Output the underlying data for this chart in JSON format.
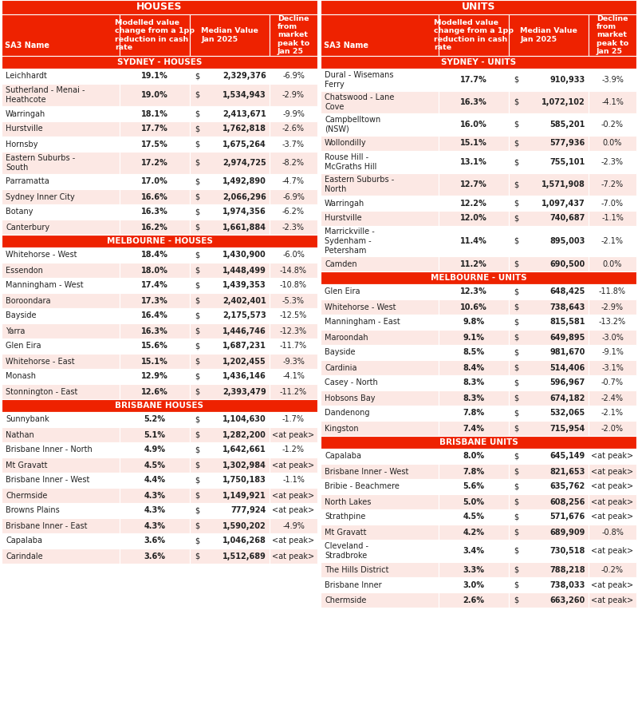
{
  "header_bg": "#ee2200",
  "header_text": "#ffffff",
  "row_even_bg": "#ffffff",
  "row_odd_bg": "#fce8e4",
  "dark_text": "#222222",
  "title_houses": "HOUSES",
  "title_units": "UNITS",
  "col_headers": [
    "SA3 Name",
    "Modelled value\nchange from a 1pp\nreduction in cash\nrate",
    "Median Value\nJan 2025",
    "Decline\nfrom\nmarket\npeak to\nJan 25"
  ],
  "houses_sydney_header": "SYDNEY - HOUSES",
  "houses_melbourne_header": "MELBOURNE - HOUSES",
  "houses_brisbane_header": "BRISBANE HOUSES",
  "units_sydney_header": "SYDNEY - UNITS",
  "units_melbourne_header": "MELBOURNE - UNITS",
  "units_brisbane_header": "BRISBANE UNITS",
  "houses_sydney": [
    [
      "Leichhardt",
      "19.1%",
      "2,329,376",
      "-6.9%",
      1
    ],
    [
      "Sutherland - Menai -\nHeathcote",
      "19.0%",
      "1,534,943",
      "-2.9%",
      2
    ],
    [
      "Warringah",
      "18.1%",
      "2,413,671",
      "-9.9%",
      1
    ],
    [
      "Hurstville",
      "17.7%",
      "1,762,818",
      "-2.6%",
      2
    ],
    [
      "Hornsby",
      "17.5%",
      "1,675,264",
      "-3.7%",
      1
    ],
    [
      "Eastern Suburbs -\nSouth",
      "17.2%",
      "2,974,725",
      "-8.2%",
      2
    ],
    [
      "Parramatta",
      "17.0%",
      "1,492,890",
      "-4.7%",
      1
    ],
    [
      "Sydney Inner City",
      "16.6%",
      "2,066,296",
      "-6.9%",
      2
    ],
    [
      "Botany",
      "16.3%",
      "1,974,356",
      "-6.2%",
      1
    ],
    [
      "Canterbury",
      "16.2%",
      "1,661,884",
      "-2.3%",
      2
    ]
  ],
  "houses_melbourne": [
    [
      "Whitehorse - West",
      "18.4%",
      "1,430,900",
      "-6.0%",
      1
    ],
    [
      "Essendon",
      "18.0%",
      "1,448,499",
      "-14.8%",
      2
    ],
    [
      "Manningham - West",
      "17.4%",
      "1,439,353",
      "-10.8%",
      1
    ],
    [
      "Boroondara",
      "17.3%",
      "2,402,401",
      "-5.3%",
      2
    ],
    [
      "Bayside",
      "16.4%",
      "2,175,573",
      "-12.5%",
      1
    ],
    [
      "Yarra",
      "16.3%",
      "1,446,746",
      "-12.3%",
      2
    ],
    [
      "Glen Eira",
      "15.6%",
      "1,687,231",
      "-11.7%",
      1
    ],
    [
      "Whitehorse - East",
      "15.1%",
      "1,202,455",
      "-9.3%",
      2
    ],
    [
      "Monash",
      "12.9%",
      "1,436,146",
      "-4.1%",
      1
    ],
    [
      "Stonnington - East",
      "12.6%",
      "2,393,479",
      "-11.2%",
      2
    ]
  ],
  "houses_brisbane": [
    [
      "Sunnybank",
      "5.2%",
      "1,104,630",
      "-1.7%",
      1
    ],
    [
      "Nathan",
      "5.1%",
      "1,282,200",
      "<at peak>",
      2
    ],
    [
      "Brisbane Inner - North",
      "4.9%",
      "1,642,661",
      "-1.2%",
      1
    ],
    [
      "Mt Gravatt",
      "4.5%",
      "1,302,984",
      "<at peak>",
      2
    ],
    [
      "Brisbane Inner - West",
      "4.4%",
      "1,750,183",
      "-1.1%",
      1
    ],
    [
      "Chermside",
      "4.3%",
      "1,149,921",
      "<at peak>",
      2
    ],
    [
      "Browns Plains",
      "4.3%",
      "777,924",
      "<at peak>",
      1
    ],
    [
      "Brisbane Inner - East",
      "4.3%",
      "1,590,202",
      "-4.9%",
      2
    ],
    [
      "Capalaba",
      "3.6%",
      "1,046,268",
      "<at peak>",
      1
    ],
    [
      "Carindale",
      "3.6%",
      "1,512,689",
      "<at peak>",
      2
    ]
  ],
  "units_sydney": [
    [
      "Dural - Wisemans\nFerry",
      "17.7%",
      "910,933",
      "-3.9%",
      1
    ],
    [
      "Chatswood - Lane\nCove",
      "16.3%",
      "1,072,102",
      "-4.1%",
      2
    ],
    [
      "Campbelltown\n(NSW)",
      "16.0%",
      "585,201",
      "-0.2%",
      1
    ],
    [
      "Wollondilly",
      "15.1%",
      "577,936",
      "0.0%",
      2
    ],
    [
      "Rouse Hill -\nMcGraths Hill",
      "13.1%",
      "755,101",
      "-2.3%",
      1
    ],
    [
      "Eastern Suburbs -\nNorth",
      "12.7%",
      "1,571,908",
      "-7.2%",
      2
    ],
    [
      "Warringah",
      "12.2%",
      "1,097,437",
      "-7.0%",
      1
    ],
    [
      "Hurstville",
      "12.0%",
      "740,687",
      "-1.1%",
      2
    ],
    [
      "Marrickville -\nSydenham -\nPetersham",
      "11.4%",
      "895,003",
      "-2.1%",
      1
    ],
    [
      "Camden",
      "11.2%",
      "690,500",
      "0.0%",
      2
    ]
  ],
  "units_melbourne": [
    [
      "Glen Eira",
      "12.3%",
      "648,425",
      "-11.8%",
      1
    ],
    [
      "Whitehorse - West",
      "10.6%",
      "738,643",
      "-2.9%",
      2
    ],
    [
      "Manningham - East",
      "9.8%",
      "815,581",
      "-13.2%",
      1
    ],
    [
      "Maroondah",
      "9.1%",
      "649,895",
      "-3.0%",
      2
    ],
    [
      "Bayside",
      "8.5%",
      "981,670",
      "-9.1%",
      1
    ],
    [
      "Cardinia",
      "8.4%",
      "514,406",
      "-3.1%",
      2
    ],
    [
      "Casey - North",
      "8.3%",
      "596,967",
      "-0.7%",
      1
    ],
    [
      "Hobsons Bay",
      "8.3%",
      "674,182",
      "-2.4%",
      2
    ],
    [
      "Dandenong",
      "7.8%",
      "532,065",
      "-2.1%",
      1
    ],
    [
      "Kingston",
      "7.4%",
      "715,954",
      "-2.0%",
      2
    ]
  ],
  "units_brisbane": [
    [
      "Capalaba",
      "8.0%",
      "645,149",
      "<at peak>",
      1
    ],
    [
      "Brisbane Inner - West",
      "7.8%",
      "821,653",
      "<at peak>",
      2
    ],
    [
      "Bribie - Beachmere",
      "5.6%",
      "635,762",
      "<at peak>",
      1
    ],
    [
      "North Lakes",
      "5.0%",
      "608,256",
      "<at peak>",
      2
    ],
    [
      "Strathpine",
      "4.5%",
      "571,676",
      "<at peak>",
      1
    ],
    [
      "Mt Gravatt",
      "4.2%",
      "689,909",
      "-0.8%",
      2
    ],
    [
      "Cleveland -\nStradbroke",
      "3.4%",
      "730,518",
      "<at peak>",
      1
    ],
    [
      "The Hills District",
      "3.3%",
      "788,218",
      "-0.2%",
      2
    ],
    [
      "Brisbane Inner",
      "3.0%",
      "738,033",
      "<at peak>",
      1
    ],
    [
      "Chermside",
      "2.6%",
      "663,260",
      "<at peak>",
      2
    ]
  ]
}
